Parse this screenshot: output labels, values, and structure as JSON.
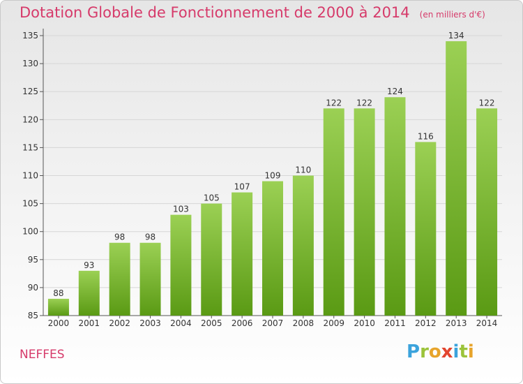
{
  "title": "Dotation Globale de Fonctionnement de 2000 à 2014",
  "unit_note": "(en milliers d'€)",
  "commune": "NEFFES",
  "logo": {
    "letters": [
      "P",
      "r",
      "o",
      "x",
      "i",
      "t",
      "i"
    ],
    "colors": [
      "#3ba3dc",
      "#9bc33a",
      "#e7a42b",
      "#e2452f",
      "#3ba3dc",
      "#9bc33a",
      "#e7a42b"
    ]
  },
  "colors": {
    "bar_top": "#9bd054",
    "bar_bottom": "#5a9a14",
    "title": "#d63a6a",
    "axis": "#555555",
    "grid": "#d6d6d6"
  },
  "chart_data": {
    "type": "bar",
    "categories": [
      "2000",
      "2001",
      "2002",
      "2003",
      "2004",
      "2005",
      "2006",
      "2007",
      "2008",
      "2009",
      "2010",
      "2011",
      "2012",
      "2013",
      "2014"
    ],
    "values": [
      88,
      93,
      98,
      98,
      103,
      105,
      107,
      109,
      110,
      122,
      122,
      124,
      116,
      134,
      122
    ],
    "data_labels": [
      "88",
      "93",
      "98",
      "98",
      "103",
      "105",
      "107",
      "109",
      "110",
      "122",
      "122",
      "124",
      "116",
      "134",
      "122"
    ],
    "yticks": [
      85,
      90,
      95,
      100,
      105,
      110,
      115,
      120,
      125,
      130,
      135
    ],
    "ylim": [
      85,
      136
    ],
    "grid": true,
    "legend": "none"
  }
}
